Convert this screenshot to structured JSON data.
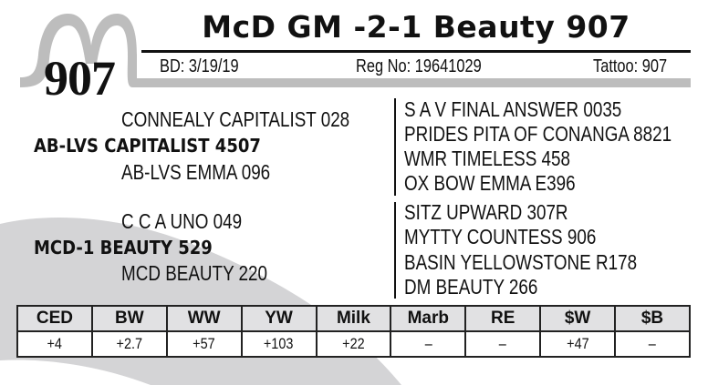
{
  "header": {
    "title": "McD GM -2-1 Beauty 907",
    "lot_number": "907",
    "birth_date": "BD: 3/19/19",
    "reg_no": "Reg No: 19641029",
    "tattoo": "Tattoo: 907"
  },
  "logo": {
    "letter": "M",
    "color": "#bdbdbd"
  },
  "pedigree": {
    "sire": "AB-LVS CAPITALIST 4507",
    "sire_sire": "CONNEALY CAPITALIST 028",
    "sire_dam": "AB-LVS EMMA 096",
    "dam": "MCD-1 BEAUTY 529",
    "dam_sire": "C C A UNO 049",
    "dam_dam": "MCD BEAUTY 220",
    "great_grandparents": [
      "S A V FINAL ANSWER 0035",
      "PRIDES PITA OF CONANGA 8821",
      "WMR TIMELESS 458",
      "OX BOW EMMA E396",
      "SITZ UPWARD 307R",
      "MYTTY COUNTESS 906",
      "BASIN YELLOWSTONE R178",
      "DM BEAUTY 266"
    ]
  },
  "epd": {
    "headers": [
      "CED",
      "BW",
      "WW",
      "YW",
      "Milk",
      "Marb",
      "RE",
      "$W",
      "$B"
    ],
    "values": [
      "+4",
      "+2.7",
      "+57",
      "+103",
      "+22",
      "–",
      "–",
      "+47",
      "–"
    ]
  },
  "colors": {
    "swoosh": "#d4d4d6",
    "header_fill": "#e1e1e3"
  }
}
